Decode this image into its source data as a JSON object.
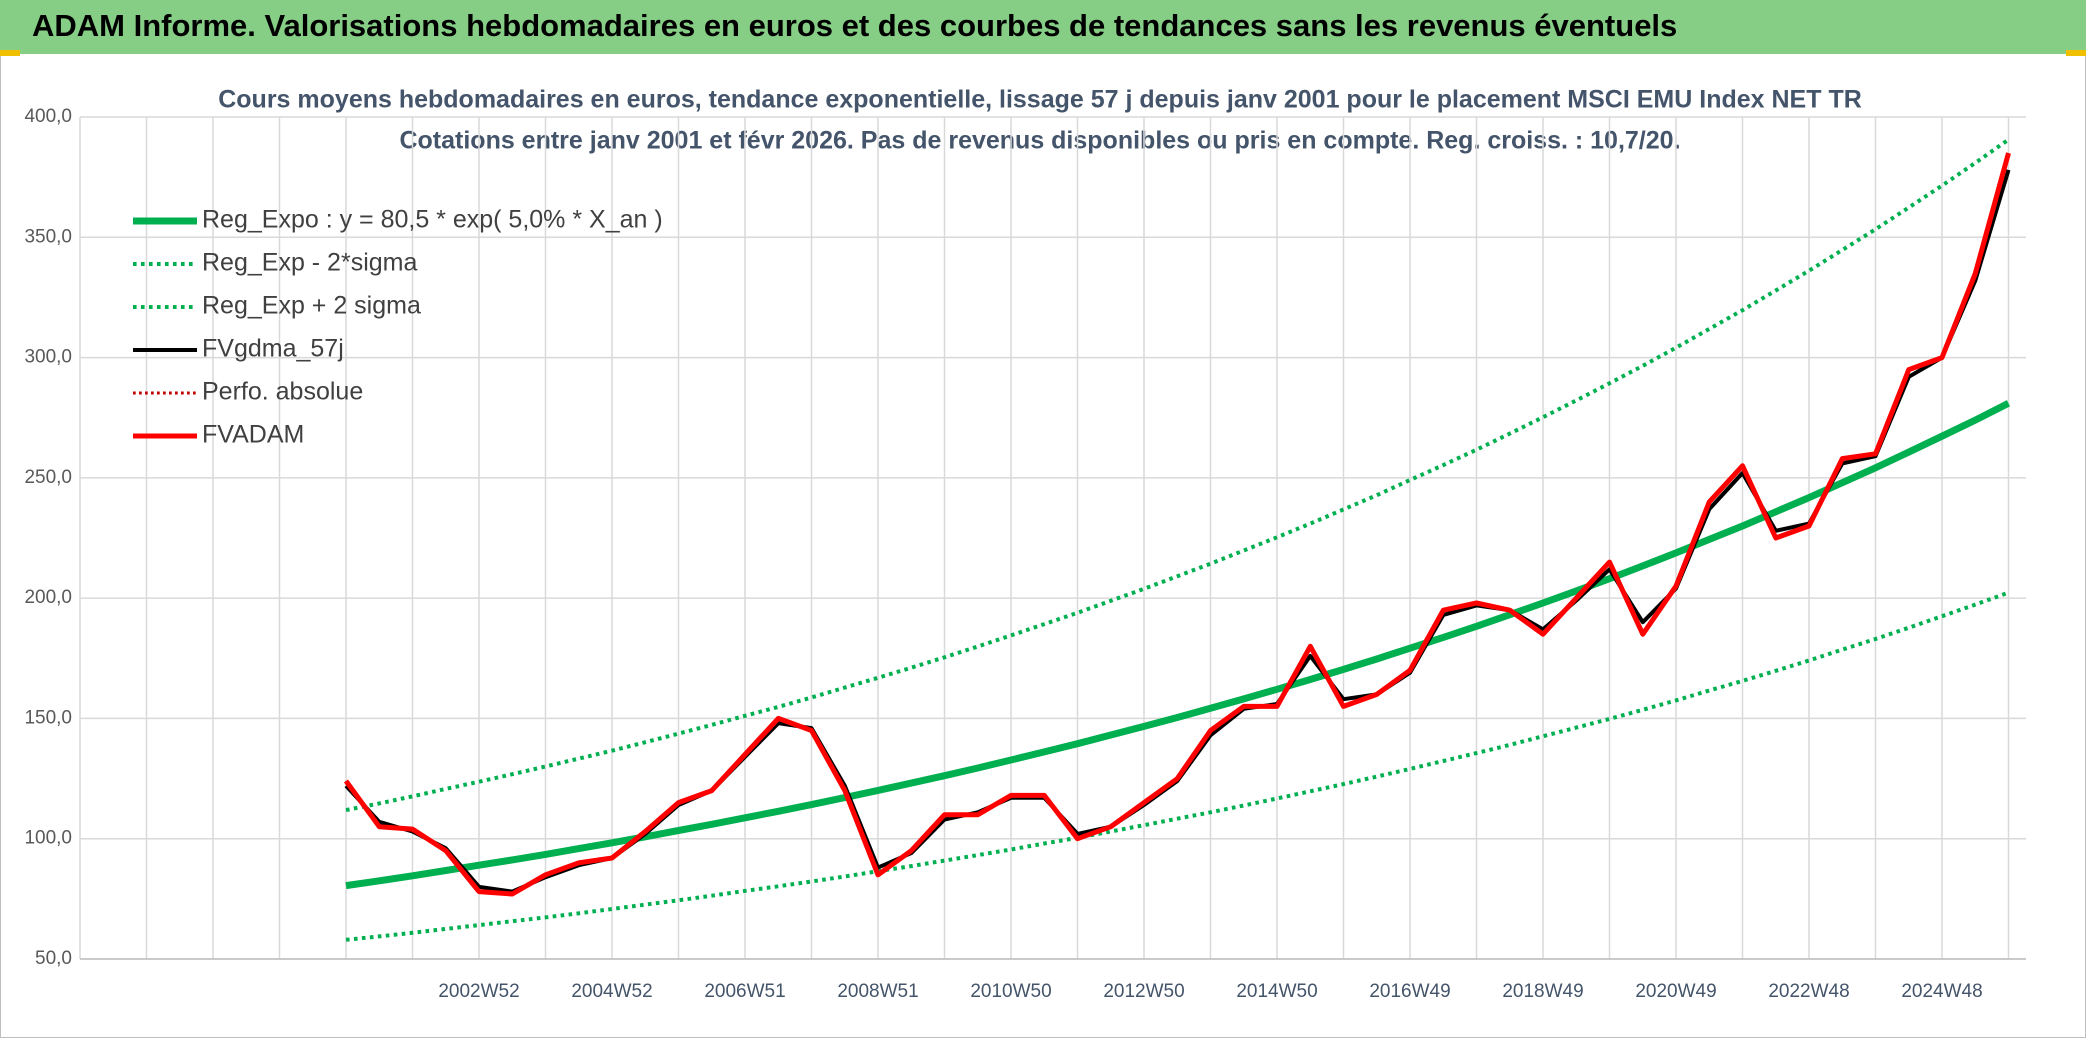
{
  "chart_data": {
    "type": "line",
    "banner": "ADAM Informe. Valorisations hebdomadaires en euros et des courbes de tendances sans les revenus éventuels",
    "title": "Cours moyens hebdomadaires en euros, tendance exponentielle, lissage 57 j depuis janv 2001 pour le placement MSCI EMU Index NET TR",
    "subtitle": "Cotations entre janv 2001 et févr 2026. Pas de revenus disponibles ou pris en compte. Reg. croiss. : 10,7/20.",
    "categories": [
      null,
      null,
      null,
      null,
      null,
      null,
      null,
      null,
      null,
      null,
      null,
      null,
      "2002W52",
      null,
      null,
      null,
      "2004W52",
      null,
      null,
      null,
      "2006W51",
      null,
      null,
      null,
      "2008W51",
      null,
      null,
      null,
      "2010W50",
      null,
      null,
      null,
      "2012W50",
      null,
      null,
      null,
      "2014W50",
      null,
      null,
      null,
      "2016W49",
      null,
      null,
      null,
      "2018W49",
      null,
      null,
      null,
      "2020W49",
      null,
      null,
      null,
      "2022W48",
      null,
      null,
      null,
      "2024W48",
      null,
      null
    ],
    "ylim": [
      50,
      400
    ],
    "yticks": [
      {
        "value": 50,
        "label": "50,0"
      },
      {
        "value": 100,
        "label": "100,0"
      },
      {
        "value": 150,
        "label": "150,0"
      },
      {
        "value": 200,
        "label": "200,0"
      },
      {
        "value": 250,
        "label": "250,0"
      },
      {
        "value": 300,
        "label": "300,0"
      },
      {
        "value": 350,
        "label": "350,0"
      },
      {
        "value": 400,
        "label": "400,0"
      }
    ],
    "grid": true,
    "legend": "top-left",
    "series": [
      {
        "name": "Reg_Expo : y = 80,5 * exp( 5,0% *  X_an )",
        "color": "#00b050",
        "style": "solid",
        "width": 7,
        "values": [
          null,
          null,
          null,
          null,
          null,
          null,
          null,
          null,
          80.5,
          82.5,
          84.6,
          86.8,
          89.0,
          91.2,
          93.5,
          95.9,
          98.3,
          100.8,
          103.4,
          106.0,
          108.7,
          111.4,
          114.2,
          117.1,
          120.1,
          123.1,
          126.2,
          129.4,
          132.7,
          136.1,
          139.5,
          143.1,
          146.7,
          150.4,
          154.2,
          158.1,
          162.1,
          166.2,
          170.4,
          174.7,
          179.2,
          183.7,
          188.3,
          193.1,
          198.0,
          203.0,
          208.1,
          213.4,
          218.8,
          224.4,
          230.0,
          235.9,
          241.8,
          248.0,
          254.2,
          260.7,
          267.3,
          274.0,
          281.0
        ]
      },
      {
        "name": "Reg_Exp - 2*sigma",
        "color": "#00b050",
        "style": "dotted",
        "width": 4,
        "values": [
          null,
          null,
          null,
          null,
          null,
          null,
          null,
          null,
          58.0,
          59.4,
          60.9,
          62.5,
          64.1,
          65.7,
          67.3,
          69.0,
          70.8,
          72.6,
          74.4,
          76.3,
          78.3,
          80.2,
          82.2,
          84.3,
          86.5,
          88.6,
          90.9,
          93.2,
          95.5,
          98.0,
          100.4,
          103.0,
          105.6,
          108.3,
          111.0,
          113.8,
          116.7,
          119.7,
          122.7,
          125.8,
          129.0,
          132.3,
          135.6,
          139.0,
          142.6,
          146.2,
          149.8,
          153.6,
          157.5,
          161.6,
          165.6,
          169.8,
          174.1,
          178.6,
          183.0,
          187.7,
          192.5,
          197.3,
          202.3
        ]
      },
      {
        "name": "Reg_Exp + 2 sigma",
        "color": "#00b050",
        "style": "dotted",
        "width": 4,
        "values": [
          null,
          null,
          null,
          null,
          null,
          null,
          null,
          null,
          111.9,
          114.7,
          117.6,
          120.7,
          123.7,
          126.8,
          130.0,
          133.3,
          136.6,
          140.1,
          143.7,
          147.3,
          151.1,
          154.8,
          158.7,
          162.8,
          166.9,
          171.1,
          175.4,
          179.9,
          184.5,
          189.2,
          193.9,
          198.9,
          203.9,
          209.1,
          214.3,
          219.8,
          225.3,
          231.0,
          236.9,
          242.8,
          249.1,
          255.3,
          261.7,
          268.4,
          275.2,
          282.2,
          289.3,
          296.6,
          304.1,
          311.9,
          319.7,
          327.9,
          336.1,
          344.7,
          353.3,
          362.4,
          371.5,
          380.9,
          390.6
        ]
      },
      {
        "name": "FVgdma_57j",
        "color": "#000000",
        "style": "solid",
        "width": 4,
        "values": [
          null,
          null,
          null,
          null,
          null,
          null,
          null,
          null,
          122,
          107,
          103,
          96,
          80,
          78,
          84,
          89,
          92,
          102,
          114,
          120,
          134,
          148,
          146,
          122,
          88,
          94,
          108,
          111,
          117,
          117,
          102,
          105,
          114,
          124,
          143,
          154,
          156,
          176,
          158,
          160,
          169,
          193,
          197,
          195,
          187,
          199,
          212,
          190,
          204,
          237,
          252,
          228,
          231,
          256,
          259,
          292,
          300,
          332,
          378
        ]
      },
      {
        "name": "Perfo. absolue",
        "color": "#c00000",
        "style": "dotted",
        "width": 3,
        "values": [
          null,
          null,
          null,
          null,
          null,
          null,
          null,
          null,
          124,
          105,
          104,
          95,
          78,
          77,
          85,
          90,
          92,
          103,
          115,
          120,
          135,
          150,
          145,
          120,
          85,
          95,
          110,
          110,
          118,
          118,
          100,
          105,
          115,
          125,
          145,
          155,
          155,
          180,
          155,
          160,
          170,
          195,
          198,
          195,
          185,
          200,
          215,
          185,
          205,
          240,
          255,
          225,
          230,
          258,
          260,
          295,
          300,
          335,
          385
        ]
      },
      {
        "name": "FVADAM",
        "color": "#ff0000",
        "style": "solid",
        "width": 5,
        "values": [
          null,
          null,
          null,
          null,
          null,
          null,
          null,
          null,
          124,
          105,
          104,
          95,
          78,
          77,
          85,
          90,
          92,
          103,
          115,
          120,
          135,
          150,
          145,
          120,
          85,
          95,
          110,
          110,
          118,
          118,
          100,
          105,
          115,
          125,
          145,
          155,
          155,
          180,
          155,
          160,
          170,
          195,
          198,
          195,
          185,
          200,
          215,
          185,
          205,
          240,
          255,
          225,
          230,
          258,
          260,
          295,
          300,
          335,
          385
        ]
      }
    ]
  }
}
